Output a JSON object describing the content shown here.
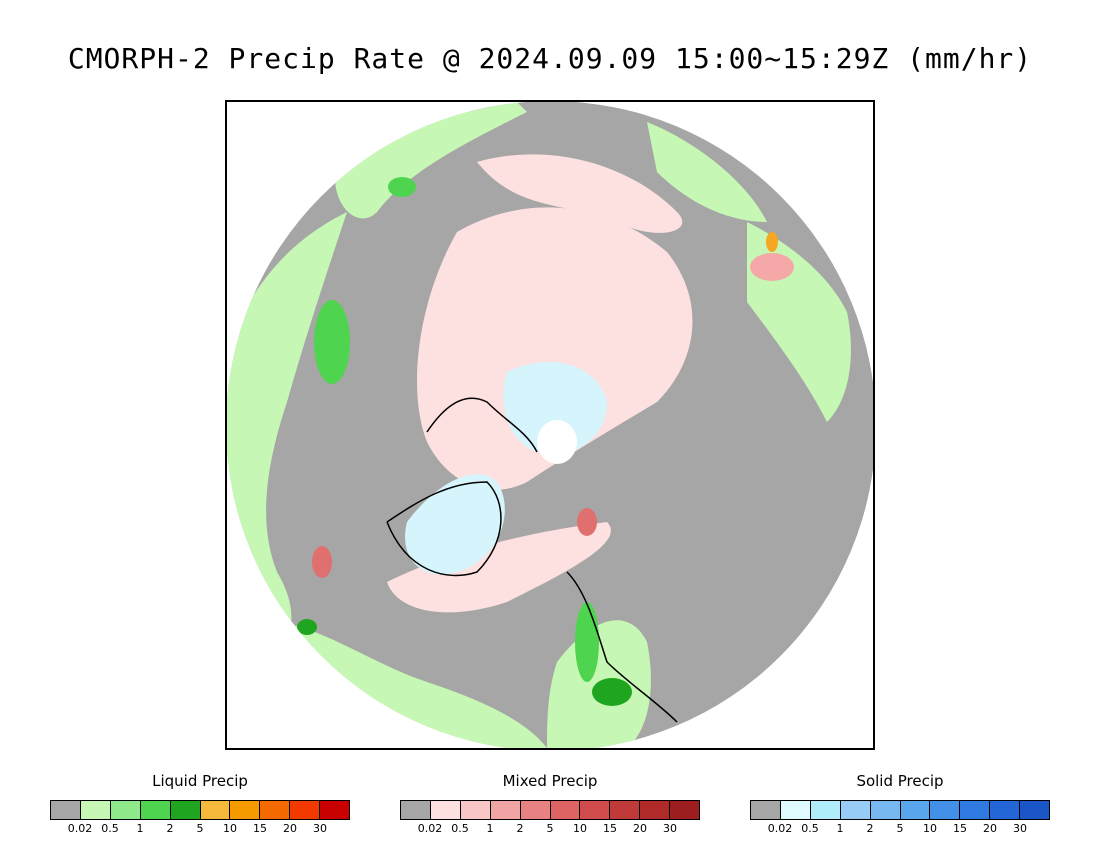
{
  "title": "CMORPH-2 Precip Rate @ 2024.09.09 15:00~15:29Z (mm/hr)",
  "map": {
    "projection": "north-polar-stereographic",
    "colors": {
      "no_precip": "#a6a6a6",
      "light_green": "#c6f7b4",
      "mid_green": "#7fe07a",
      "bright_green": "#3fcf3f",
      "dark_green": "#1ea51e",
      "pink_light": "#fde0e0",
      "pink_mid": "#f4a8a8",
      "red_mixed": "#e07070",
      "snow_light": "#d6f4fb",
      "snow_mid": "#aee6f5",
      "orange": "#f5a623"
    }
  },
  "legends": [
    {
      "title": "Liquid Precip",
      "colors": [
        "#a6a6a6",
        "#c6f7b4",
        "#8fe98a",
        "#4fd44f",
        "#20a520",
        "#f5b83a",
        "#f59b00",
        "#f56a00",
        "#f23a00",
        "#c80000"
      ],
      "ticks": [
        "0.02",
        "0.5",
        "1",
        "2",
        "5",
        "10",
        "15",
        "20",
        "30"
      ]
    },
    {
      "title": "Mixed Precip",
      "colors": [
        "#a6a6a6",
        "#fde0e0",
        "#f8c6c6",
        "#f0a4a4",
        "#e88282",
        "#de6464",
        "#d04c4c",
        "#c03a3a",
        "#b02a2a",
        "#9c1e1e"
      ],
      "ticks": [
        "0.02",
        "0.5",
        "1",
        "2",
        "5",
        "10",
        "15",
        "20",
        "30"
      ]
    },
    {
      "title": "Solid Precip",
      "colors": [
        "#a6a6a6",
        "#e0fbff",
        "#b0ecfa",
        "#96ccf5",
        "#78b8f0",
        "#5aa6ec",
        "#4290e8",
        "#2f7ae0",
        "#2466d8",
        "#1a56c8"
      ],
      "ticks": [
        "0.02",
        "0.5",
        "1",
        "2",
        "5",
        "10",
        "15",
        "20",
        "30"
      ]
    }
  ]
}
